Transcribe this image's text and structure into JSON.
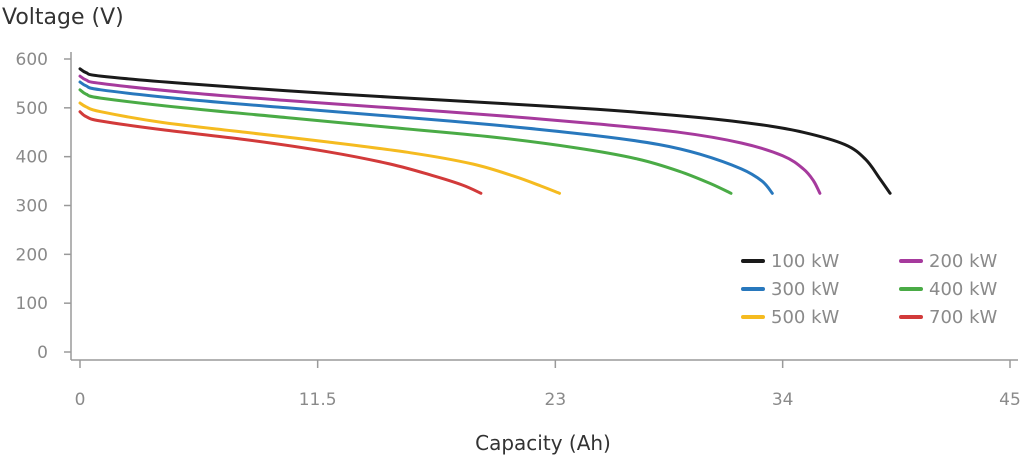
{
  "chart_data": {
    "type": "line",
    "title": "",
    "ylabel": "Voltage (V)",
    "xlabel": "Capacity (Ah)",
    "xlim": [
      0,
      45
    ],
    "ylim": [
      0,
      600
    ],
    "x_ticks": [
      0,
      11.5,
      23,
      34,
      45
    ],
    "x_tick_labels": [
      "0",
      "11.5",
      "23",
      "34",
      "45"
    ],
    "y_ticks": [
      0,
      100,
      200,
      300,
      400,
      500,
      600
    ],
    "y_tick_labels": [
      "0",
      "100",
      "200",
      "300",
      "400",
      "500",
      "600"
    ],
    "grid": false,
    "legend_position": "bottom-right",
    "series": [
      {
        "name": "100 kW",
        "color": "#1a1a1a",
        "points": [
          [
            0,
            580
          ],
          [
            0.3,
            572
          ],
          [
            1,
            565
          ],
          [
            5,
            550
          ],
          [
            10,
            535
          ],
          [
            15,
            522
          ],
          [
            20,
            510
          ],
          [
            25,
            497
          ],
          [
            30,
            480
          ],
          [
            33,
            465
          ],
          [
            35,
            450
          ],
          [
            37,
            425
          ],
          [
            38,
            395
          ],
          [
            38.7,
            355
          ],
          [
            39.2,
            325
          ]
        ]
      },
      {
        "name": "200 kW",
        "color": "#a63a9d",
        "points": [
          [
            0,
            565
          ],
          [
            0.3,
            557
          ],
          [
            1,
            550
          ],
          [
            5,
            532
          ],
          [
            10,
            515
          ],
          [
            15,
            500
          ],
          [
            20,
            485
          ],
          [
            25,
            467
          ],
          [
            29,
            450
          ],
          [
            32,
            428
          ],
          [
            34,
            402
          ],
          [
            35,
            375
          ],
          [
            35.5,
            350
          ],
          [
            35.8,
            325
          ]
        ]
      },
      {
        "name": "300 kW",
        "color": "#2878bd",
        "points": [
          [
            0,
            553
          ],
          [
            0.3,
            545
          ],
          [
            1,
            537
          ],
          [
            5,
            518
          ],
          [
            10,
            500
          ],
          [
            15,
            483
          ],
          [
            20,
            465
          ],
          [
            25,
            443
          ],
          [
            28,
            425
          ],
          [
            30,
            405
          ],
          [
            32,
            375
          ],
          [
            33,
            350
          ],
          [
            33.5,
            325
          ]
        ]
      },
      {
        "name": "400 kW",
        "color": "#4aab46",
        "points": [
          [
            0,
            537
          ],
          [
            0.3,
            528
          ],
          [
            1,
            520
          ],
          [
            5,
            500
          ],
          [
            10,
            480
          ],
          [
            15,
            460
          ],
          [
            20,
            440
          ],
          [
            24,
            418
          ],
          [
            27,
            395
          ],
          [
            29,
            370
          ],
          [
            30.5,
            345
          ],
          [
            31.5,
            325
          ]
        ]
      },
      {
        "name": "500 kW",
        "color": "#f5bb20",
        "points": [
          [
            0,
            510
          ],
          [
            0.3,
            502
          ],
          [
            1,
            492
          ],
          [
            4,
            470
          ],
          [
            8,
            450
          ],
          [
            12,
            430
          ],
          [
            16,
            408
          ],
          [
            19,
            385
          ],
          [
            21,
            360
          ],
          [
            22.3,
            340
          ],
          [
            23.2,
            325
          ]
        ]
      },
      {
        "name": "700 kW",
        "color": "#d23a3a",
        "points": [
          [
            0,
            492
          ],
          [
            0.3,
            482
          ],
          [
            1,
            473
          ],
          [
            4,
            455
          ],
          [
            8,
            435
          ],
          [
            12,
            410
          ],
          [
            15,
            385
          ],
          [
            17,
            362
          ],
          [
            18.5,
            342
          ],
          [
            19.4,
            325
          ]
        ]
      }
    ]
  }
}
